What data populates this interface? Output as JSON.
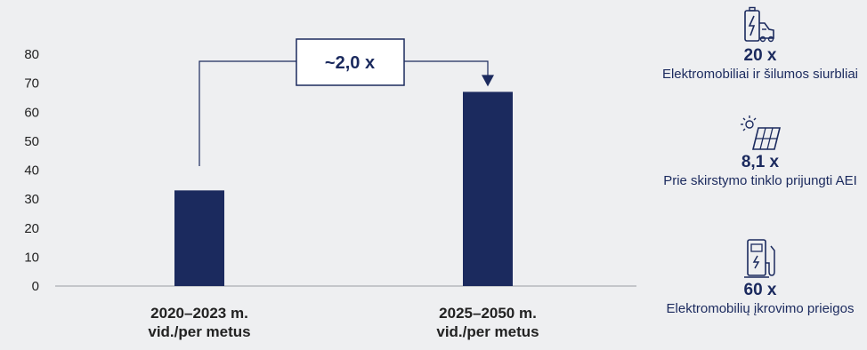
{
  "chart_data": {
    "type": "bar",
    "categories": [
      [
        "2020–2023 m.",
        "vid./per metus"
      ],
      [
        "2025–2050 m.",
        "vid./per metus"
      ]
    ],
    "values": [
      33,
      67
    ],
    "ylim": [
      0,
      80
    ],
    "yticks": [
      0,
      10,
      20,
      30,
      40,
      50,
      60,
      70,
      80
    ],
    "grid": false,
    "bar_color": "#1b2a5e",
    "annotation": "~2,0 x"
  },
  "side": [
    {
      "icon": "electric-car-icon",
      "multiplier": "20 x",
      "label": "Elektromobiliai ir šilumos siurbliai"
    },
    {
      "icon": "solar-panel-icon",
      "multiplier": "8,1 x",
      "label": "Prie skirstymo tinklo prijungti AEI"
    },
    {
      "icon": "charging-station-icon",
      "multiplier": "60 x",
      "label": "Elektromobilių įkrovimo prieigos"
    }
  ],
  "colors": {
    "navy": "#1b2a5e",
    "background": "#eeeff1"
  }
}
